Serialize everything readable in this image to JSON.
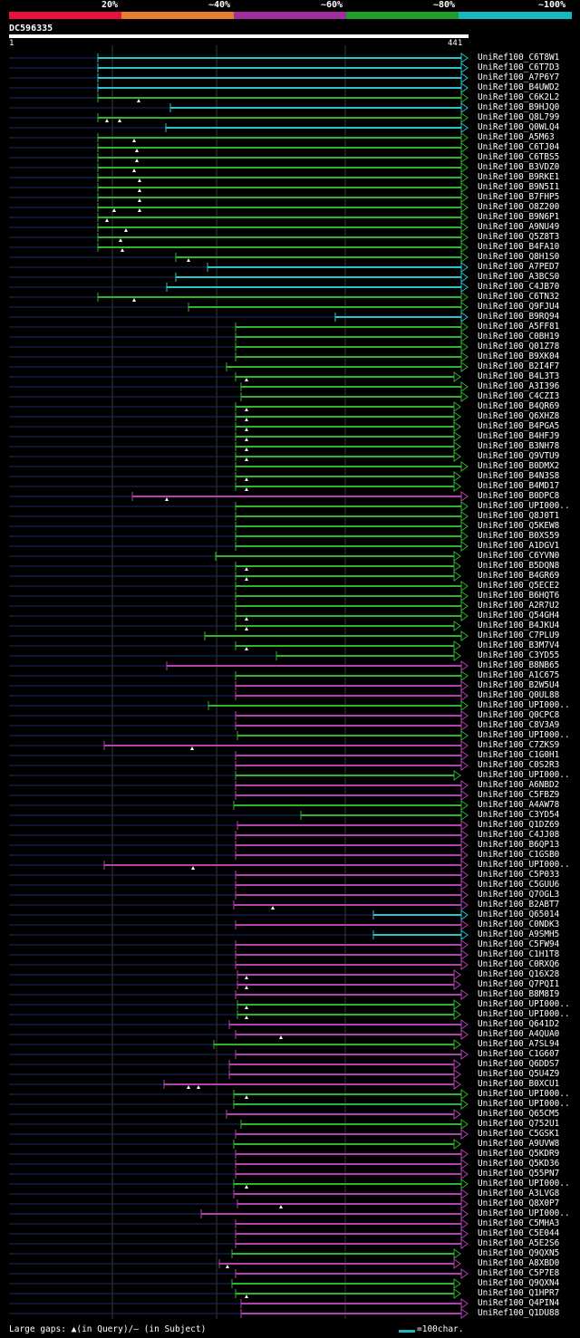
{
  "colors": {
    "bands": [
      "#e8113e",
      "#e87e2a",
      "#a02e9c",
      "#1e9e2a",
      "#17b8c0"
    ],
    "magenta": "#b340b0",
    "green": "#2fb32f",
    "cyan": "#25c7cf",
    "grid": "#3a3a3a",
    "dashes": "#1b2a6b"
  },
  "legend": {
    "scale_labels": [
      "20%",
      "~40%",
      "~60%",
      "~80%",
      "~100%"
    ]
  },
  "query": {
    "id": "DC596335",
    "start": "1",
    "end": "441"
  },
  "hits": [
    {
      "label": "UniRef100_C6T8W1",
      "color": "cyan",
      "start": 108,
      "end": 516,
      "gaps": []
    },
    {
      "label": "UniRef100_C6T7D3",
      "color": "cyan",
      "start": 108,
      "end": 516,
      "gaps": []
    },
    {
      "label": "UniRef100_A7P6Y7",
      "color": "cyan",
      "start": 108,
      "end": 516,
      "gaps": []
    },
    {
      "label": "UniRef100_B4UWD2",
      "color": "cyan",
      "start": 108,
      "end": 516,
      "gaps": []
    },
    {
      "label": "UniRef100_C6K2L2",
      "color": "green",
      "start": 108,
      "end": 516,
      "gaps": [
        153
      ]
    },
    {
      "label": "UniRef100_B9HJQ0",
      "color": "cyan",
      "start": 188,
      "end": 516,
      "gaps": []
    },
    {
      "label": "UniRef100_Q8L799",
      "color": "green",
      "start": 108,
      "end": 516,
      "gaps": [
        118,
        132
      ]
    },
    {
      "label": "UniRef100_Q0WLQ4",
      "color": "cyan",
      "start": 183,
      "end": 516,
      "gaps": []
    },
    {
      "label": "UniRef100_A5M63",
      "color": "green",
      "start": 108,
      "end": 516,
      "gaps": [
        148
      ]
    },
    {
      "label": "UniRef100_C6TJ04",
      "color": "green",
      "start": 108,
      "end": 516,
      "gaps": [
        151
      ]
    },
    {
      "label": "UniRef100_C6TBS5",
      "color": "green",
      "start": 108,
      "end": 516,
      "gaps": [
        151
      ]
    },
    {
      "label": "UniRef100_B3VDZ0",
      "color": "green",
      "start": 108,
      "end": 516,
      "gaps": [
        148
      ]
    },
    {
      "label": "UniRef100_B9RKE1",
      "color": "green",
      "start": 108,
      "end": 516,
      "gaps": [
        154
      ]
    },
    {
      "label": "UniRef100_B9N5I1",
      "color": "green",
      "start": 108,
      "end": 516,
      "gaps": [
        154
      ]
    },
    {
      "label": "UniRef100_B7FHP5",
      "color": "green",
      "start": 108,
      "end": 516,
      "gaps": [
        154
      ]
    },
    {
      "label": "UniRef100_O8Z200",
      "color": "green",
      "start": 108,
      "end": 516,
      "gaps": [
        126,
        154
      ]
    },
    {
      "label": "UniRef100_B9N6P1",
      "color": "green",
      "start": 108,
      "end": 516,
      "gaps": [
        118
      ]
    },
    {
      "label": "UniRef100_A9NU49",
      "color": "green",
      "start": 108,
      "end": 516,
      "gaps": [
        139
      ]
    },
    {
      "label": "UniRef100_Q5Z8T3",
      "color": "green",
      "start": 108,
      "end": 516,
      "gaps": [
        133
      ]
    },
    {
      "label": "UniRef100_B4FA10",
      "color": "green",
      "start": 108,
      "end": 516,
      "gaps": [
        135
      ]
    },
    {
      "label": "UniRef100_Q8H1S0",
      "color": "green",
      "start": 194,
      "end": 516,
      "gaps": [
        208
      ]
    },
    {
      "label": "UniRef100_A7PED7",
      "color": "cyan",
      "start": 229,
      "end": 516,
      "gaps": []
    },
    {
      "label": "UniRef100_A3BCS0",
      "color": "cyan",
      "start": 194,
      "end": 516,
      "gaps": []
    },
    {
      "label": "UniRef100_C4JB70",
      "color": "cyan",
      "start": 184,
      "end": 516,
      "gaps": []
    },
    {
      "label": "UniRef100_C6TN32",
      "color": "green",
      "start": 108,
      "end": 516,
      "gaps": [
        148
      ]
    },
    {
      "label": "UniRef100_Q9FJU4",
      "color": "green",
      "start": 208,
      "end": 516,
      "gaps": []
    },
    {
      "label": "UniRef100_B9RQ94",
      "color": "cyan",
      "start": 370,
      "end": 516,
      "gaps": []
    },
    {
      "label": "UniRef100_A5FF81",
      "color": "green",
      "start": 260,
      "end": 516,
      "gaps": []
    },
    {
      "label": "UniRef100_C0BH19",
      "color": "green",
      "start": 260,
      "end": 516,
      "gaps": []
    },
    {
      "label": "UniRef100_Q01Z78",
      "color": "green",
      "start": 260,
      "end": 516,
      "gaps": []
    },
    {
      "label": "UniRef100_B9XK04",
      "color": "green",
      "start": 260,
      "end": 516,
      "gaps": []
    },
    {
      "label": "UniRef100_B2I4F7",
      "color": "green",
      "start": 250,
      "end": 516,
      "gaps": []
    },
    {
      "label": "UniRef100_B4L3T3",
      "color": "green",
      "start": 260,
      "end": 508,
      "gaps": [
        272
      ]
    },
    {
      "label": "UniRef100_A3I396",
      "color": "green",
      "start": 266,
      "end": 516,
      "gaps": []
    },
    {
      "label": "UniRef100_C4CZI3",
      "color": "green",
      "start": 266,
      "end": 516,
      "gaps": []
    },
    {
      "label": "UniRef100_B4QR69",
      "color": "green",
      "start": 260,
      "end": 508,
      "gaps": [
        272
      ]
    },
    {
      "label": "UniRef100_Q6XHZ8",
      "color": "green",
      "start": 260,
      "end": 508,
      "gaps": [
        272
      ]
    },
    {
      "label": "UniRef100_B4PGA5",
      "color": "green",
      "start": 260,
      "end": 508,
      "gaps": [
        272
      ]
    },
    {
      "label": "UniRef100_B4HFJ9",
      "color": "green",
      "start": 260,
      "end": 508,
      "gaps": [
        272
      ]
    },
    {
      "label": "UniRef100_B3NH78",
      "color": "green",
      "start": 260,
      "end": 508,
      "gaps": [
        272
      ]
    },
    {
      "label": "UniRef100_Q9VTU9",
      "color": "green",
      "start": 260,
      "end": 508,
      "gaps": [
        272
      ]
    },
    {
      "label": "UniRef100_B0DMX2",
      "color": "green",
      "start": 260,
      "end": 516,
      "gaps": []
    },
    {
      "label": "UniRef100_B4N3S8",
      "color": "green",
      "start": 260,
      "end": 508,
      "gaps": [
        272
      ]
    },
    {
      "label": "UniRef100_B4MD17",
      "color": "green",
      "start": 260,
      "end": 508,
      "gaps": [
        272
      ]
    },
    {
      "label": "UniRef100_B0DPC8",
      "color": "magenta",
      "start": 146,
      "end": 516,
      "gaps": [
        184
      ]
    },
    {
      "label": "UniRef100_UPI000..",
      "color": "green",
      "start": 260,
      "end": 516,
      "gaps": []
    },
    {
      "label": "UniRef100_Q8J0T1",
      "color": "green",
      "start": 260,
      "end": 516,
      "gaps": []
    },
    {
      "label": "UniRef100_Q5KEW8",
      "color": "green",
      "start": 260,
      "end": 516,
      "gaps": []
    },
    {
      "label": "UniRef100_B0XS59",
      "color": "green",
      "start": 260,
      "end": 516,
      "gaps": []
    },
    {
      "label": "UniRef100_A1DGV1",
      "color": "green",
      "start": 260,
      "end": 516,
      "gaps": []
    },
    {
      "label": "UniRef100_C6YVN0",
      "color": "green",
      "start": 238,
      "end": 508,
      "gaps": []
    },
    {
      "label": "UniRef100_B5DQN8",
      "color": "green",
      "start": 260,
      "end": 508,
      "gaps": [
        272
      ]
    },
    {
      "label": "UniRef100_B4GR69",
      "color": "green",
      "start": 260,
      "end": 508,
      "gaps": [
        272
      ]
    },
    {
      "label": "UniRef100_Q5ECE2",
      "color": "green",
      "start": 260,
      "end": 516,
      "gaps": []
    },
    {
      "label": "UniRef100_B6HQT6",
      "color": "green",
      "start": 260,
      "end": 516,
      "gaps": []
    },
    {
      "label": "UniRef100_A2R7U2",
      "color": "green",
      "start": 260,
      "end": 516,
      "gaps": []
    },
    {
      "label": "UniRef100_Q54GH4",
      "color": "green",
      "start": 260,
      "end": 516,
      "gaps": [
        272
      ]
    },
    {
      "label": "UniRef100_B4JKU4",
      "color": "green",
      "start": 260,
      "end": 508,
      "gaps": [
        272
      ]
    },
    {
      "label": "UniRef100_C7PLU9",
      "color": "green",
      "start": 226,
      "end": 516,
      "gaps": []
    },
    {
      "label": "UniRef100_B3M7V4",
      "color": "green",
      "start": 260,
      "end": 508,
      "gaps": [
        272
      ]
    },
    {
      "label": "UniRef100_C3YD55",
      "color": "green",
      "start": 305,
      "end": 508,
      "gaps": []
    },
    {
      "label": "UniRef100_B8NB65",
      "color": "magenta",
      "start": 184,
      "end": 516,
      "gaps": []
    },
    {
      "label": "UniRef100_A1C675",
      "color": "green",
      "start": 260,
      "end": 516,
      "gaps": []
    },
    {
      "label": "UniRef100_B2W5U4",
      "color": "magenta",
      "start": 260,
      "end": 516,
      "gaps": []
    },
    {
      "label": "UniRef100_Q0UL88",
      "color": "magenta",
      "start": 260,
      "end": 516,
      "gaps": []
    },
    {
      "label": "UniRef100_UPI000..",
      "color": "green",
      "start": 230,
      "end": 516,
      "gaps": []
    },
    {
      "label": "UniRef100_Q0CPC8",
      "color": "magenta",
      "start": 260,
      "end": 516,
      "gaps": []
    },
    {
      "label": "UniRef100_C8V3A9",
      "color": "magenta",
      "start": 260,
      "end": 516,
      "gaps": []
    },
    {
      "label": "UniRef100_UPI000..",
      "color": "green",
      "start": 262,
      "end": 516,
      "gaps": []
    },
    {
      "label": "UniRef100_C7ZKS9",
      "color": "magenta",
      "start": 115,
      "end": 516,
      "gaps": [
        212
      ]
    },
    {
      "label": "UniRef100_C1G0H1",
      "color": "magenta",
      "start": 260,
      "end": 516,
      "gaps": []
    },
    {
      "label": "UniRef100_C0S2R3",
      "color": "magenta",
      "start": 260,
      "end": 516,
      "gaps": []
    },
    {
      "label": "UniRef100_UPI000..",
      "color": "green",
      "start": 260,
      "end": 508,
      "gaps": []
    },
    {
      "label": "UniRef100_A6NBD2",
      "color": "magenta",
      "start": 260,
      "end": 516,
      "gaps": []
    },
    {
      "label": "UniRef100_C5FBZ9",
      "color": "magenta",
      "start": 260,
      "end": 516,
      "gaps": []
    },
    {
      "label": "UniRef100_A4AW78",
      "color": "green",
      "start": 258,
      "end": 516,
      "gaps": []
    },
    {
      "label": "UniRef100_C3YD54",
      "color": "green",
      "start": 332,
      "end": 516,
      "gaps": []
    },
    {
      "label": "UniRef100_Q1DZ69",
      "color": "magenta",
      "start": 262,
      "end": 516,
      "gaps": []
    },
    {
      "label": "UniRef100_C4JJ08",
      "color": "magenta",
      "start": 260,
      "end": 516,
      "gaps": []
    },
    {
      "label": "UniRef100_B6QP13",
      "color": "magenta",
      "start": 260,
      "end": 516,
      "gaps": []
    },
    {
      "label": "UniRef100_C1GSB0",
      "color": "magenta",
      "start": 260,
      "end": 516,
      "gaps": []
    },
    {
      "label": "UniRef100_UPI000..",
      "color": "magenta",
      "start": 115,
      "end": 516,
      "gaps": [
        213
      ]
    },
    {
      "label": "UniRef100_C5P033",
      "color": "magenta",
      "start": 260,
      "end": 516,
      "gaps": []
    },
    {
      "label": "UniRef100_C5GUU6",
      "color": "magenta",
      "start": 260,
      "end": 516,
      "gaps": []
    },
    {
      "label": "UniRef100_Q7OGL3",
      "color": "magenta",
      "start": 260,
      "end": 516,
      "gaps": []
    },
    {
      "label": "UniRef100_B2ABT7",
      "color": "magenta",
      "start": 258,
      "end": 516,
      "gaps": [
        301
      ]
    },
    {
      "label": "UniRef100_Q65014",
      "color": "cyan",
      "start": 412,
      "end": 516,
      "gaps": []
    },
    {
      "label": "UniRef100_C0NDK3",
      "color": "magenta",
      "start": 260,
      "end": 516,
      "gaps": []
    },
    {
      "label": "UniRef100_A9SMH5",
      "color": "cyan",
      "start": 412,
      "end": 516,
      "gaps": []
    },
    {
      "label": "UniRef100_C5FW94",
      "color": "magenta",
      "start": 260,
      "end": 516,
      "gaps": []
    },
    {
      "label": "UniRef100_C1H1T8",
      "color": "magenta",
      "start": 260,
      "end": 516,
      "gaps": []
    },
    {
      "label": "UniRef100_C0RXQ6",
      "color": "magenta",
      "start": 260,
      "end": 516,
      "gaps": []
    },
    {
      "label": "UniRef100_Q16X28",
      "color": "magenta",
      "start": 262,
      "end": 508,
      "gaps": [
        272
      ]
    },
    {
      "label": "UniRef100_Q7PQI1",
      "color": "magenta",
      "start": 262,
      "end": 508,
      "gaps": [
        272
      ]
    },
    {
      "label": "UniRef100_B8M8I9",
      "color": "magenta",
      "start": 260,
      "end": 516,
      "gaps": []
    },
    {
      "label": "UniRef100_UPI000..",
      "color": "green",
      "start": 262,
      "end": 508,
      "gaps": [
        272
      ]
    },
    {
      "label": "UniRef100_UPI000..",
      "color": "green",
      "start": 262,
      "end": 508,
      "gaps": [
        272
      ]
    },
    {
      "label": "UniRef100_Q641D2",
      "color": "magenta",
      "start": 253,
      "end": 516,
      "gaps": []
    },
    {
      "label": "UniRef100_A4QUA0",
      "color": "magenta",
      "start": 260,
      "end": 516,
      "gaps": [
        310
      ]
    },
    {
      "label": "UniRef100_A7SL94",
      "color": "green",
      "start": 236,
      "end": 508,
      "gaps": []
    },
    {
      "label": "UniRef100_C1G607",
      "color": "magenta",
      "start": 260,
      "end": 516,
      "gaps": []
    },
    {
      "label": "UniRef100_Q6DDS7",
      "color": "magenta",
      "start": 253,
      "end": 508,
      "gaps": []
    },
    {
      "label": "UniRef100_Q5U4Z9",
      "color": "magenta",
      "start": 253,
      "end": 508,
      "gaps": []
    },
    {
      "label": "UniRef100_B0XCU1",
      "color": "magenta",
      "start": 181,
      "end": 508,
      "gaps": [
        208,
        219
      ]
    },
    {
      "label": "UniRef100_UPI000..",
      "color": "green",
      "start": 258,
      "end": 516,
      "gaps": [
        272
      ]
    },
    {
      "label": "UniRef100_UPI000..",
      "color": "green",
      "start": 258,
      "end": 516,
      "gaps": []
    },
    {
      "label": "UniRef100_Q65CM5",
      "color": "magenta",
      "start": 250,
      "end": 508,
      "gaps": []
    },
    {
      "label": "UniRef100_Q752U1",
      "color": "green",
      "start": 266,
      "end": 516,
      "gaps": []
    },
    {
      "label": "UniRef100_C5GSK1",
      "color": "magenta",
      "start": 260,
      "end": 516,
      "gaps": []
    },
    {
      "label": "UniRef100_A9UVW8",
      "color": "green",
      "start": 258,
      "end": 508,
      "gaps": []
    },
    {
      "label": "UniRef100_Q5KDR9",
      "color": "magenta",
      "start": 260,
      "end": 516,
      "gaps": []
    },
    {
      "label": "UniRef100_Q5KD36",
      "color": "magenta",
      "start": 260,
      "end": 516,
      "gaps": []
    },
    {
      "label": "UniRef100_Q55PN7",
      "color": "magenta",
      "start": 260,
      "end": 516,
      "gaps": []
    },
    {
      "label": "UniRef100_UPI000..",
      "color": "green",
      "start": 258,
      "end": 516,
      "gaps": [
        272
      ]
    },
    {
      "label": "UniRef100_A3LVG8",
      "color": "magenta",
      "start": 258,
      "end": 516,
      "gaps": []
    },
    {
      "label": "UniRef100_Q8X0P7",
      "color": "magenta",
      "start": 262,
      "end": 516,
      "gaps": [
        310
      ]
    },
    {
      "label": "UniRef100_UPI000..",
      "color": "magenta",
      "start": 222,
      "end": 516,
      "gaps": []
    },
    {
      "label": "UniRef100_C5MHA3",
      "color": "magenta",
      "start": 260,
      "end": 516,
      "gaps": []
    },
    {
      "label": "UniRef100_C5E044",
      "color": "magenta",
      "start": 260,
      "end": 516,
      "gaps": []
    },
    {
      "label": "UniRef100_A5E2S6",
      "color": "magenta",
      "start": 260,
      "end": 516,
      "gaps": []
    },
    {
      "label": "UniRef100_Q9QXN5",
      "color": "green",
      "start": 256,
      "end": 508,
      "gaps": []
    },
    {
      "label": "UniRef100_A8XBD0",
      "color": "magenta",
      "start": 242,
      "end": 508,
      "gaps": [
        251
      ]
    },
    {
      "label": "UniRef100_C5P7E8",
      "color": "magenta",
      "start": 260,
      "end": 516,
      "gaps": []
    },
    {
      "label": "UniRef100_Q9QXN4",
      "color": "green",
      "start": 256,
      "end": 508,
      "gaps": []
    },
    {
      "label": "UniRef100_Q1HPR7",
      "color": "green",
      "start": 260,
      "end": 508,
      "gaps": [
        272
      ]
    },
    {
      "label": "UniRef100_Q4PIN4",
      "color": "magenta",
      "start": 266,
      "end": 516,
      "gaps": []
    },
    {
      "label": "UniRef100_Q1DU88",
      "color": "magenta",
      "start": 266,
      "end": 516,
      "gaps": []
    }
  ],
  "footer": {
    "gaps_text": "Large gaps: ▲(in Query)/– (in Subject)",
    "scale_text": "=100char."
  }
}
